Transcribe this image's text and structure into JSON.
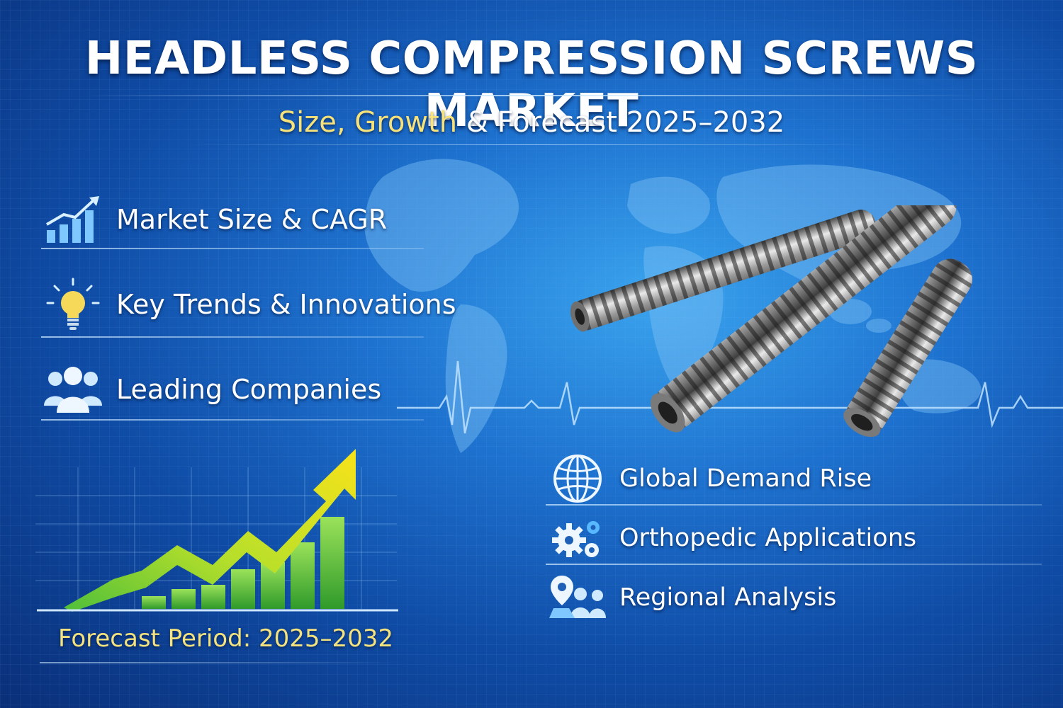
{
  "header": {
    "title": "HEADLESS COMPRESSION SCREWS MARKET",
    "subtitle_highlight": "Size, Growth",
    "subtitle_rest": " & Forecast 2025–2032"
  },
  "left_features": [
    {
      "label": "Market Size & CAGR",
      "icon": "bar-chart-growth-icon"
    },
    {
      "label": "Key Trends & Innovations",
      "icon": "lightbulb-icon"
    },
    {
      "label": "Leading Companies",
      "icon": "people-group-icon"
    }
  ],
  "right_features": [
    {
      "label": "Global Demand Rise",
      "icon": "globe-icon"
    },
    {
      "label": "Orthopedic Applications",
      "icon": "gears-icon"
    },
    {
      "label": "Regional Analysis",
      "icon": "location-people-icon"
    }
  ],
  "footer": {
    "forecast_label": "Forecast Period: 2025–2032"
  },
  "colors": {
    "accent_yellow": "#f3e27d",
    "growth_green": "#59c23c",
    "arrow_yellow": "#f2e21a",
    "background_blue": "#1e72cf"
  }
}
